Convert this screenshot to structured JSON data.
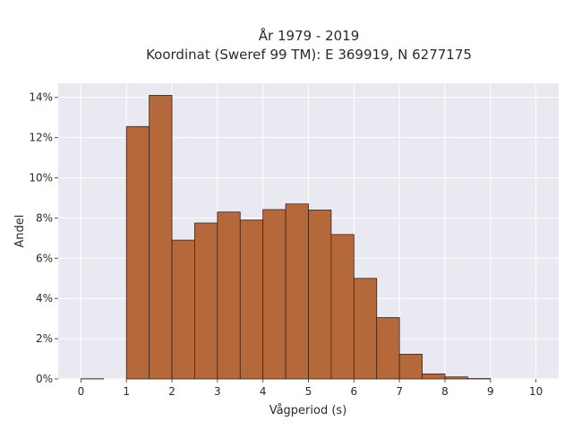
{
  "chart_data": {
    "type": "bar",
    "title_line1": "År 1979 - 2019",
    "title_line2": "Koordinat (Sweref 99 TM): E 369919, N 6277175",
    "xlabel": "Vågperiod (s)",
    "ylabel": "Andel",
    "bin_width": 0.5,
    "bins": [
      {
        "x": 0.0,
        "value": 0.0001
      },
      {
        "x": 0.5,
        "value": 0.0
      },
      {
        "x": 1.0,
        "value": 0.1255
      },
      {
        "x": 1.5,
        "value": 0.141
      },
      {
        "x": 2.0,
        "value": 0.069
      },
      {
        "x": 2.5,
        "value": 0.0775
      },
      {
        "x": 3.0,
        "value": 0.083
      },
      {
        "x": 3.5,
        "value": 0.079
      },
      {
        "x": 4.0,
        "value": 0.0842
      },
      {
        "x": 4.5,
        "value": 0.087
      },
      {
        "x": 5.0,
        "value": 0.084
      },
      {
        "x": 5.5,
        "value": 0.0718
      },
      {
        "x": 6.0,
        "value": 0.05
      },
      {
        "x": 6.5,
        "value": 0.0305
      },
      {
        "x": 7.0,
        "value": 0.0123
      },
      {
        "x": 7.5,
        "value": 0.0025
      },
      {
        "x": 8.0,
        "value": 0.001
      },
      {
        "x": 8.5,
        "value": 0.0002
      }
    ],
    "xlim": [
      -0.5,
      10.5
    ],
    "ylim": [
      0,
      0.147
    ],
    "x_ticks": [
      0,
      1,
      2,
      3,
      4,
      5,
      6,
      7,
      8,
      9,
      10
    ],
    "x_tick_labels": [
      "0",
      "1",
      "2",
      "3",
      "4",
      "5",
      "6",
      "7",
      "8",
      "9",
      "10"
    ],
    "y_ticks": [
      0,
      0.02,
      0.04,
      0.06,
      0.08,
      0.1,
      0.12,
      0.14
    ],
    "y_tick_labels": [
      "0%",
      "2%",
      "4%",
      "6%",
      "8%",
      "10%",
      "12%",
      "14%"
    ],
    "grid": true,
    "colors": {
      "bar_fill": "#b5693b",
      "bar_stroke": "#3a2418",
      "plot_background": "#e9e9f2",
      "grid": "#ffffff"
    }
  }
}
